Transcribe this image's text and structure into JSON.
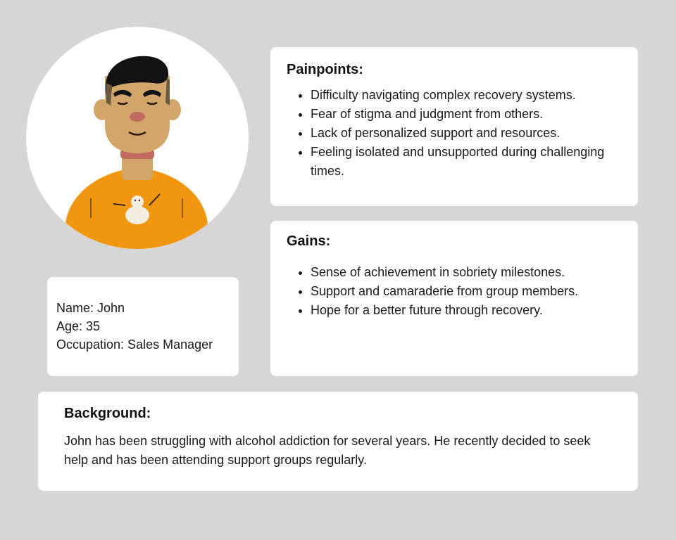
{
  "profile": {
    "name_line": "Name: John",
    "age_line": "Age: 35",
    "occupation_line": "Occupation: Sales Manager"
  },
  "painpoints": {
    "title": "Painpoints:",
    "items": [
      "Difficulty navigating complex recovery systems.",
      "Fear of stigma and judgment from others.",
      "Lack of personalized support and resources.",
      "Feeling isolated and unsupported during challenging times."
    ]
  },
  "gains": {
    "title": "Gains:",
    "items": [
      "Sense of achievement in sobriety milestones.",
      "Support and camaraderie from group members.",
      "Hope for a better future through recovery."
    ]
  },
  "background": {
    "title": "Background:",
    "text": "John has been struggling with alcohol addiction for several years. He recently decided to seek help and has been attending support groups regularly."
  },
  "colors": {
    "page_background": "#d6d6d6",
    "card_background": "#ffffff",
    "shirt": "#f0960f",
    "skin": "#d2a56a",
    "hair": "#121212"
  }
}
